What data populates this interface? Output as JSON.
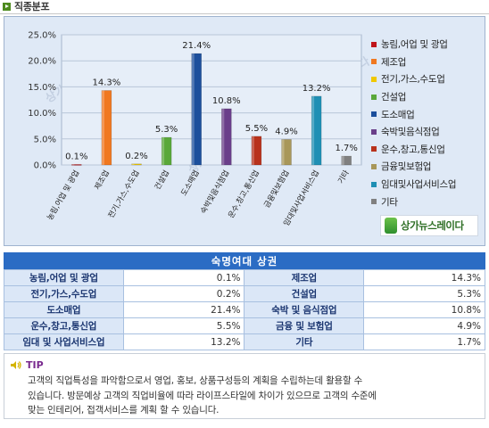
{
  "header": {
    "title": "직종분포"
  },
  "chart_data": {
    "type": "bar",
    "categories": [
      "농림,어업 및 광업",
      "제조업",
      "전기,가스,수도업",
      "건설업",
      "도소매업",
      "숙박및음식점업",
      "운수,창고,통신업",
      "금융및보험업",
      "임대및사업서비스업",
      "기타"
    ],
    "values": [
      0.1,
      14.3,
      0.2,
      5.3,
      21.4,
      10.8,
      5.5,
      4.9,
      13.2,
      1.7
    ],
    "data_labels": [
      "0.1%",
      "14.3%",
      "0.2%",
      "5.3%",
      "21.4%",
      "10.8%",
      "5.5%",
      "4.9%",
      "13.2%",
      "1.7%"
    ],
    "colors": [
      "#c0141a",
      "#f07820",
      "#f0c800",
      "#5aa83a",
      "#1c4f9c",
      "#6a3f8a",
      "#b8321c",
      "#a8975a",
      "#1f8fb4",
      "#808080"
    ],
    "ylim": [
      0,
      25
    ],
    "yticks": [
      "0.0%",
      "5.0%",
      "10.0%",
      "15.0%",
      "20.0%",
      "25.0%"
    ],
    "legend": [
      "농림,어업 및 광업",
      "제조업",
      "전기,가스,수도업",
      "건설업",
      "도소매업",
      "숙박및음식점업",
      "운수,창고,통신업",
      "금융및보험업",
      "임대및사업서비스업",
      "기타"
    ],
    "legend_position": "right",
    "grid": true
  },
  "watermark": "상가뉴스레이다",
  "logo": {
    "text": "상가뉴스레이다",
    "icon": "logo-mark-icon"
  },
  "table": {
    "title": "숙명여대 상권",
    "rows": [
      {
        "l1": "농림,어업 및 광업",
        "v1": "0.1%",
        "l2": "제조업",
        "v2": "14.3%"
      },
      {
        "l1": "전기,가스,수도업",
        "v1": "0.2%",
        "l2": "건설업",
        "v2": "5.3%"
      },
      {
        "l1": "도소매업",
        "v1": "21.4%",
        "l2": "숙박 및 음식점업",
        "v2": "10.8%"
      },
      {
        "l1": "운수,창고,통신업",
        "v1": "5.5%",
        "l2": "금융 및 보험업",
        "v2": "4.9%"
      },
      {
        "l1": "임대 및 사업서비스업",
        "v1": "13.2%",
        "l2": "기타",
        "v2": "1.7%"
      }
    ]
  },
  "tip": {
    "label": "TIP",
    "icon": "speaker-icon",
    "lines": [
      "고객의 직업특성을 파악함으로서 영업, 홍보, 상품구성등의 계획을 수립하는데 활용할 수",
      "있습니다. 방문예상 고객의 직업비율에 따라 라이프스타일에 차이가 있으므로 고객의 수준에",
      "맞는 인테리어, 접객서비스를 계획 할 수 있습니다."
    ]
  }
}
